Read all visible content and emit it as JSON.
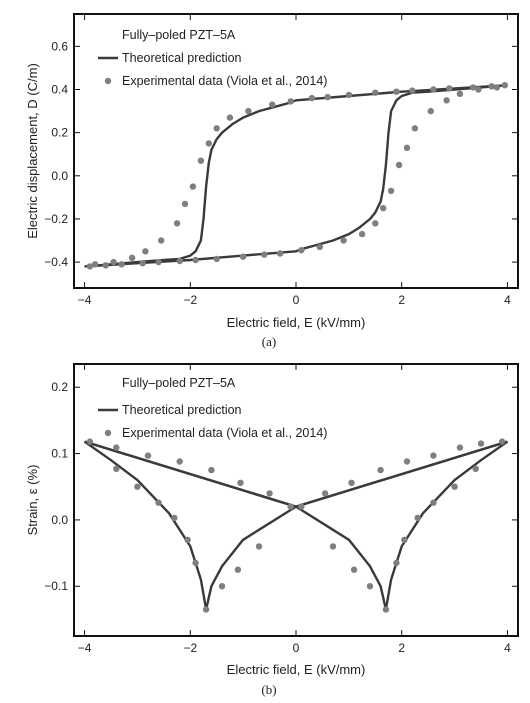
{
  "colors": {
    "frame": "#111111",
    "line": "#3a3a3a",
    "marker": "#7f7f7f"
  },
  "chart_data": [
    {
      "type": "line",
      "panel": "a",
      "caption": "(a)",
      "xlabel": "Electric field, E (kV/mm)",
      "ylabel": "Electric displacement, D (C/m)",
      "xlim": [
        -4.2,
        4.2
      ],
      "ylim": [
        -0.52,
        0.75
      ],
      "xticks": [
        -4,
        -2,
        0,
        2,
        4
      ],
      "xtick_labels": [
        "−4",
        "−2",
        "0",
        "2",
        "4"
      ],
      "yticks": [
        -0.4,
        -0.2,
        0.0,
        0.2,
        0.4,
        0.6
      ],
      "ytick_labels": [
        "−0.4",
        "−0.2",
        "0.0",
        "0.2",
        "0.4",
        "0.6"
      ],
      "grid": false,
      "legend_position": "top-left",
      "legend_title": "Fully–poled PZT–5A",
      "series": [
        {
          "name": "Theoretical prediction",
          "kind": "line",
          "branches": [
            {
              "x": [
                -4,
                -3.5,
                -3,
                -2.5,
                -2.2,
                -2.0,
                -1.9,
                -1.8,
                -1.75,
                -1.7,
                -1.65,
                -1.6,
                -1.5,
                -1.4,
                -1.2,
                -1.0,
                -0.7,
                -0.4,
                -0.1,
                0,
                1,
                2,
                3,
                4
              ],
              "y": [
                -0.42,
                -0.41,
                -0.4,
                -0.39,
                -0.385,
                -0.37,
                -0.35,
                -0.3,
                -0.2,
                -0.05,
                0.06,
                0.12,
                0.17,
                0.2,
                0.24,
                0.27,
                0.3,
                0.32,
                0.34,
                0.35,
                0.37,
                0.39,
                0.405,
                0.42
              ]
            },
            {
              "x": [
                4,
                3.5,
                3,
                2.5,
                2.2,
                2.0,
                1.9,
                1.8,
                1.75,
                1.7,
                1.65,
                1.6,
                1.5,
                1.4,
                1.2,
                1.0,
                0.7,
                0.4,
                0.1,
                0,
                -1,
                -2,
                -3,
                -4
              ],
              "y": [
                0.42,
                0.41,
                0.4,
                0.39,
                0.385,
                0.37,
                0.35,
                0.3,
                0.2,
                0.05,
                -0.06,
                -0.12,
                -0.17,
                -0.2,
                -0.24,
                -0.27,
                -0.3,
                -0.32,
                -0.34,
                -0.35,
                -0.37,
                -0.39,
                -0.405,
                -0.42
              ]
            }
          ]
        },
        {
          "name": "Experimental data (Viola et al., 2014)",
          "kind": "scatter",
          "x": [
            -3.9,
            -3.6,
            -3.3,
            -2.9,
            -2.6,
            -2.2,
            -1.9,
            -1.5,
            -1.0,
            -0.6,
            -0.3,
            0.1,
            0.45,
            0.9,
            1.25,
            1.5,
            1.65,
            1.8,
            1.95,
            2.1,
            2.25,
            2.55,
            2.85,
            3.1,
            3.45,
            3.8,
            3.95,
            3.7,
            3.35,
            2.9,
            2.6,
            2.2,
            1.9,
            1.5,
            1.0,
            0.6,
            0.3,
            -0.1,
            -0.45,
            -0.9,
            -1.25,
            -1.5,
            -1.65,
            -1.8,
            -1.95,
            -2.1,
            -2.25,
            -2.55,
            -2.85,
            -3.1,
            -3.45,
            -3.8
          ],
          "y": [
            -0.42,
            -0.415,
            -0.41,
            -0.405,
            -0.4,
            -0.395,
            -0.39,
            -0.385,
            -0.375,
            -0.365,
            -0.36,
            -0.345,
            -0.33,
            -0.3,
            -0.27,
            -0.22,
            -0.15,
            -0.07,
            0.05,
            0.13,
            0.22,
            0.3,
            0.35,
            0.38,
            0.4,
            0.41,
            0.42,
            0.415,
            0.41,
            0.405,
            0.4,
            0.395,
            0.39,
            0.385,
            0.375,
            0.365,
            0.36,
            0.345,
            0.33,
            0.3,
            0.27,
            0.22,
            0.15,
            0.07,
            -0.05,
            -0.13,
            -0.22,
            -0.3,
            -0.35,
            -0.38,
            -0.4,
            -0.41
          ]
        }
      ]
    },
    {
      "type": "line",
      "panel": "b",
      "caption": "(b)",
      "xlabel": "Electric field, E (kV/mm)",
      "ylabel": "Strain, ε (%)",
      "xlim": [
        -4.2,
        4.2
      ],
      "ylim": [
        -0.175,
        0.235
      ],
      "xticks": [
        -4,
        -2,
        0,
        2,
        4
      ],
      "xtick_labels": [
        "−4",
        "−2",
        "0",
        "2",
        "4"
      ],
      "yticks": [
        -0.1,
        0.0,
        0.1,
        0.2
      ],
      "ytick_labels": [
        "−0.1",
        "0.0",
        "0.1",
        "0.2"
      ],
      "grid": false,
      "legend_position": "top-left",
      "legend_title": "Fully–poled PZT–5A",
      "series": [
        {
          "name": "Theoretical prediction",
          "kind": "line",
          "branches": [
            {
              "x": [
                -4,
                0,
                4
              ],
              "y": [
                0.118,
                0.02,
                0.118
              ]
            },
            {
              "x": [
                4,
                0,
                -1.0,
                -1.4,
                -1.6,
                -1.7
              ],
              "y": [
                0.118,
                0.02,
                -0.03,
                -0.07,
                -0.1,
                -0.135
              ]
            },
            {
              "x": [
                -1.7,
                -1.8,
                -2.0,
                -2.4,
                -3.0,
                -3.5,
                -4
              ],
              "y": [
                -0.135,
                -0.09,
                -0.04,
                0.01,
                0.06,
                0.09,
                0.118
              ]
            },
            {
              "x": [
                -4,
                0,
                1.0,
                1.4,
                1.6,
                1.7
              ],
              "y": [
                0.118,
                0.02,
                -0.03,
                -0.07,
                -0.1,
                -0.135
              ]
            },
            {
              "x": [
                1.7,
                1.8,
                2.0,
                2.4,
                3.0,
                3.5,
                4
              ],
              "y": [
                -0.135,
                -0.09,
                -0.04,
                0.01,
                0.06,
                0.09,
                0.118
              ]
            }
          ]
        },
        {
          "name": "Experimental data (Viola et al., 2014)",
          "kind": "scatter",
          "x": [
            -3.9,
            -3.4,
            -2.8,
            -2.2,
            -1.6,
            -1.05,
            -0.5,
            0.1,
            0.55,
            1.05,
            1.6,
            2.1,
            2.6,
            3.1,
            3.5,
            3.9,
            3.4,
            3.0,
            2.6,
            2.3,
            2.05,
            1.9,
            1.7,
            1.4,
            1.1,
            0.7,
            -0.1,
            -0.7,
            -1.1,
            -1.4,
            -1.7,
            -1.9,
            -2.05,
            -2.3,
            -2.6,
            -3.0,
            -3.4
          ],
          "y": [
            0.118,
            0.109,
            0.097,
            0.088,
            0.075,
            0.056,
            0.04,
            0.02,
            0.04,
            0.056,
            0.075,
            0.088,
            0.097,
            0.109,
            0.115,
            0.118,
            0.077,
            0.05,
            0.026,
            0.003,
            -0.03,
            -0.065,
            -0.135,
            -0.1,
            -0.075,
            -0.04,
            0.02,
            -0.04,
            -0.075,
            -0.1,
            -0.135,
            -0.065,
            -0.03,
            0.003,
            0.026,
            0.05,
            0.077
          ]
        }
      ]
    }
  ]
}
